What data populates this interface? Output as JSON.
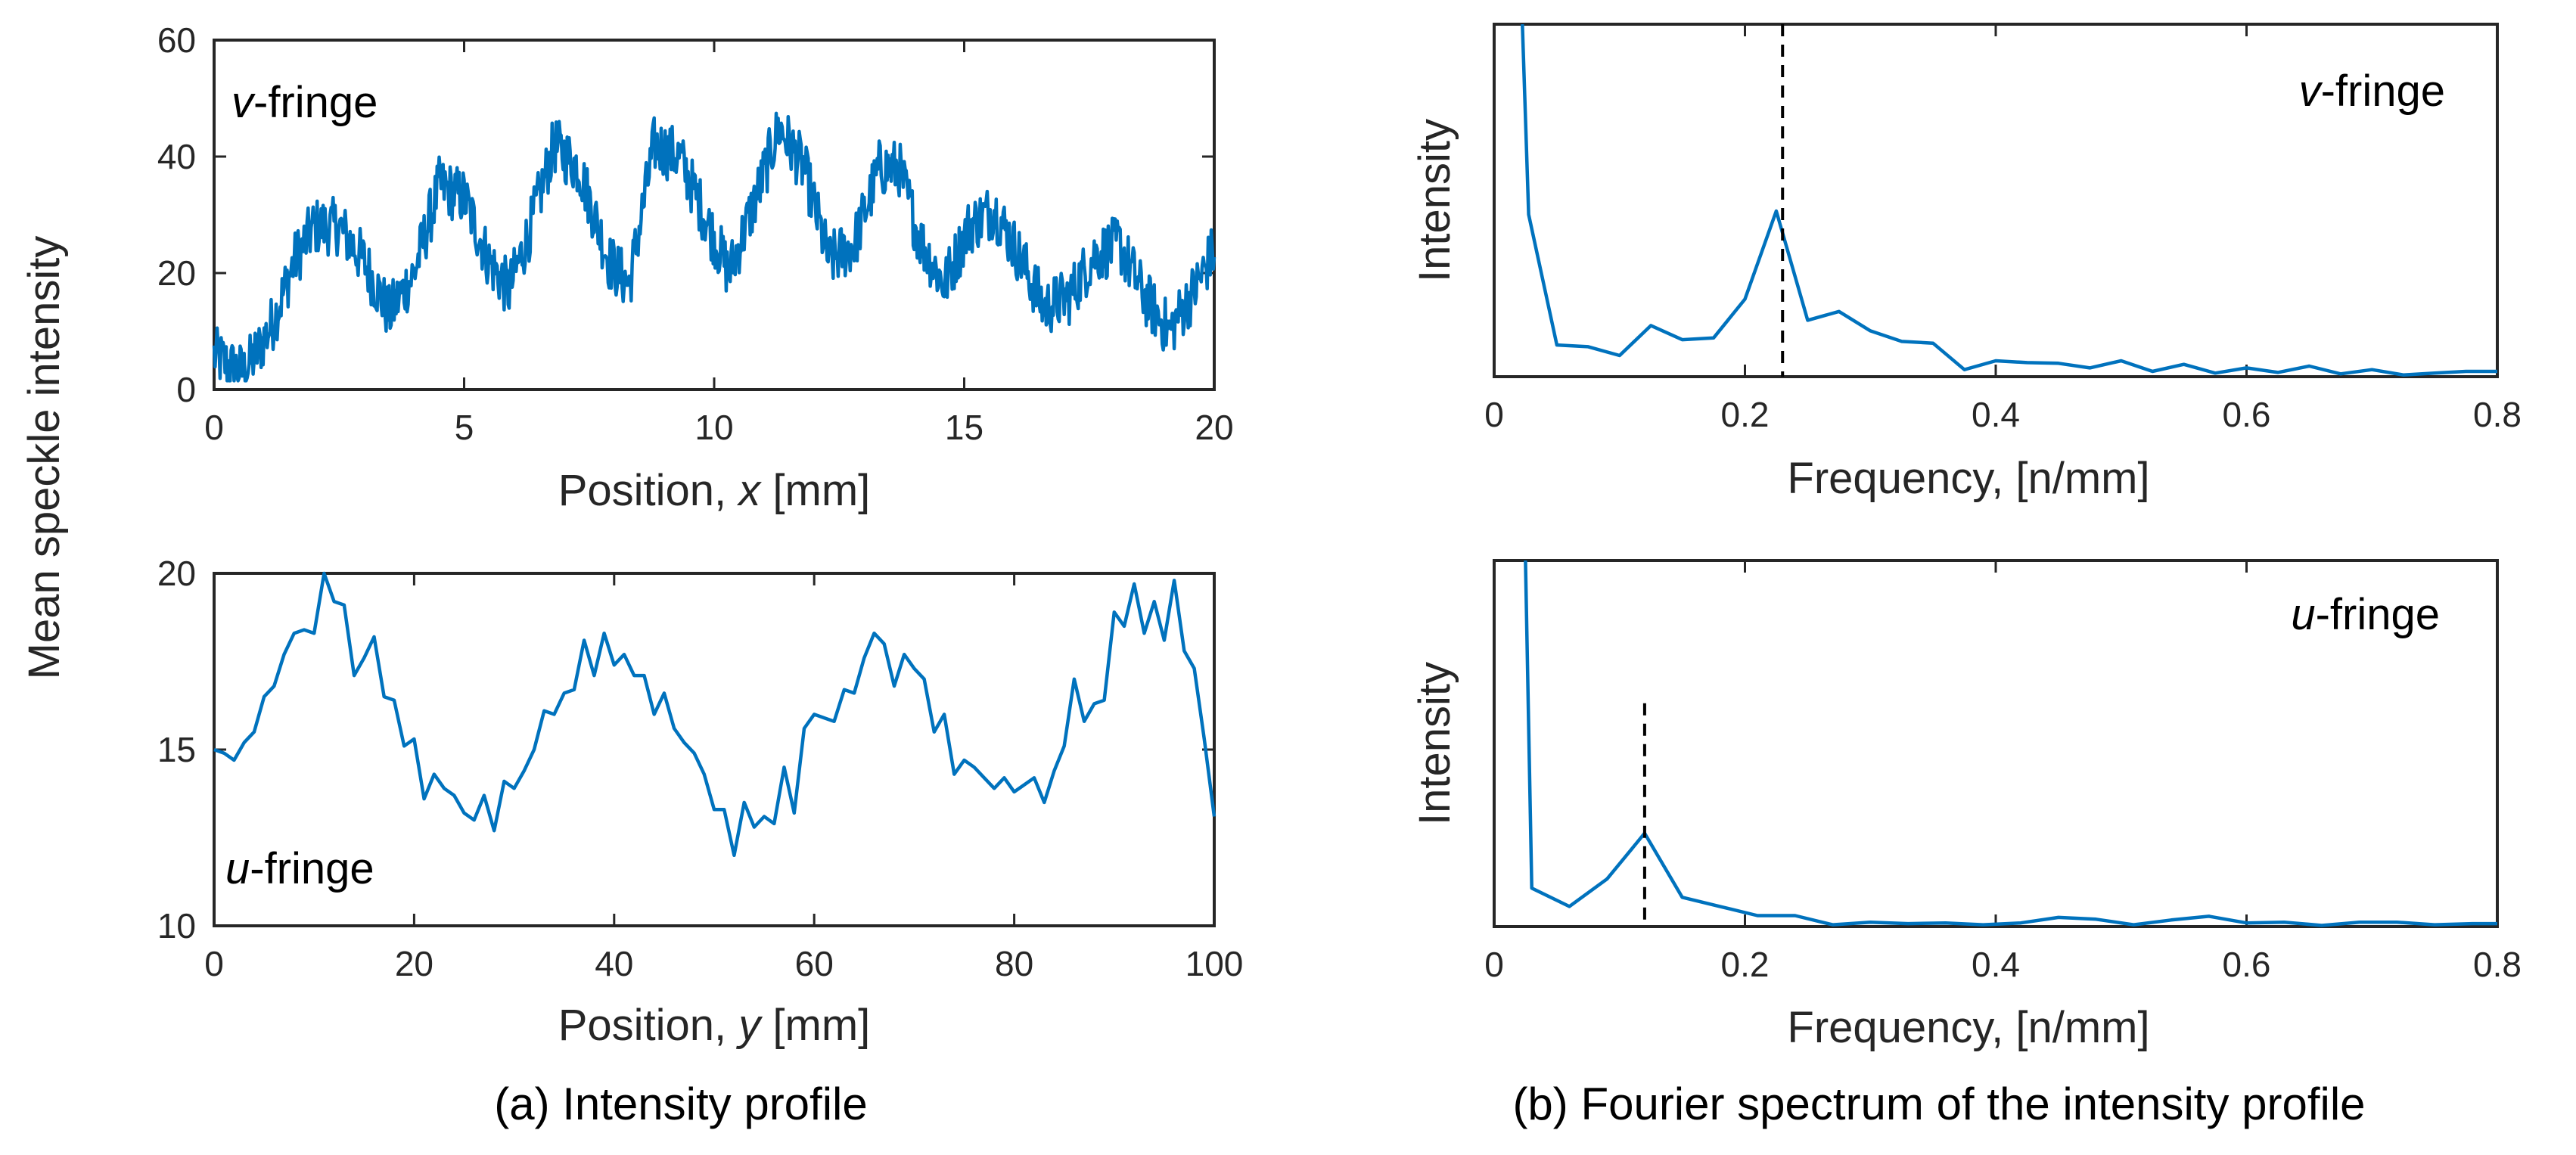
{
  "common_ylabel": "Mean speckle intensity",
  "captions": {
    "a": "(a) Intensity profile",
    "b": "(b) Fourier spectrum of the intensity profile"
  },
  "colors": {
    "series": "#0072BD",
    "axis": "#262626",
    "peak_marker": "#000000"
  },
  "chart_data": [
    {
      "id": "v_profile",
      "type": "line",
      "inset_label": {
        "italic": "v",
        "rest": "-fringe"
      },
      "xlabel": {
        "pre": "Position, ",
        "var": "x",
        "post": " [mm]"
      },
      "xlim": [
        0,
        20
      ],
      "ylim": [
        0,
        60
      ],
      "xticks": [
        0,
        5,
        10,
        15,
        20
      ],
      "yticks": [
        0,
        20,
        40,
        60
      ],
      "envelope": {
        "x": [
          0,
          0.3,
          0.6,
          0.9,
          1.2,
          1.6,
          2.0,
          2.5,
          3.0,
          3.5,
          4.0,
          4.5,
          5.0,
          5.5,
          5.9,
          6.3,
          6.8,
          7.3,
          7.9,
          8.3,
          8.8,
          9.3,
          9.8,
          10.3,
          10.8,
          11.3,
          11.8,
          12.3,
          12.8,
          13.3,
          13.7,
          14.1,
          14.6,
          15.1,
          15.6,
          16.1,
          16.6,
          17.1,
          17.6,
          18.1,
          18.6,
          19.1,
          19.6,
          20.0
        ],
        "y": [
          6,
          4,
          3,
          7,
          12,
          22,
          28,
          28,
          22,
          13,
          20,
          35,
          33,
          22,
          17,
          27,
          42,
          38,
          22,
          18,
          42,
          40,
          30,
          20,
          32,
          45,
          38,
          22,
          25,
          38,
          38,
          26,
          18,
          28,
          31,
          23,
          14,
          16,
          23,
          25,
          16,
          10,
          17,
          24
        ],
        "noise_amplitude": 5,
        "points_per_mm": 50
      }
    },
    {
      "id": "u_profile",
      "type": "line",
      "inset_label": {
        "italic": "u",
        "rest": "-fringe"
      },
      "xlabel": {
        "pre": "Position, ",
        "var": "y",
        "post": " [mm]"
      },
      "xlim": [
        0,
        100
      ],
      "ylim": [
        10,
        20
      ],
      "xticks": [
        0,
        20,
        40,
        60,
        80,
        100
      ],
      "yticks": [
        10,
        15,
        20
      ],
      "x": [
        0,
        1,
        2,
        3,
        4,
        5,
        6,
        7,
        8,
        9,
        10,
        11,
        12,
        13,
        14,
        15,
        16,
        17,
        18,
        19,
        20,
        21,
        22,
        23,
        24,
        25,
        26,
        27,
        28,
        29,
        30,
        31,
        32,
        33,
        34,
        35,
        36,
        37,
        38,
        39,
        40,
        41,
        42,
        43,
        44,
        45,
        46,
        47,
        48,
        49,
        50,
        51,
        52,
        53,
        54,
        55,
        56,
        57,
        58,
        59,
        60,
        61,
        62,
        63,
        64,
        65,
        66,
        67,
        68,
        69,
        70,
        71,
        72,
        73,
        74,
        75,
        76,
        77,
        78,
        79,
        80,
        81,
        82,
        83,
        84,
        85,
        86,
        87,
        88,
        89,
        90,
        91,
        92,
        93,
        94,
        95,
        96,
        97,
        98,
        99,
        100
      ],
      "y": [
        15.0,
        14.9,
        14.7,
        15.2,
        15.5,
        16.5,
        16.8,
        17.7,
        18.3,
        18.4,
        18.3,
        20.0,
        19.2,
        19.1,
        17.1,
        17.6,
        18.2,
        16.5,
        16.4,
        15.1,
        15.3,
        13.6,
        14.3,
        13.9,
        13.7,
        13.2,
        13.0,
        13.7,
        12.7,
        14.1,
        13.9,
        14.4,
        15.0,
        16.1,
        16.0,
        16.6,
        16.7,
        18.1,
        17.1,
        18.3,
        17.4,
        17.7,
        17.1,
        17.1,
        16.0,
        16.6,
        15.6,
        15.2,
        14.9,
        14.3,
        13.3,
        13.3,
        12.0,
        13.5,
        12.8,
        13.1,
        12.9,
        14.5,
        13.2,
        15.6,
        16.0,
        15.9,
        15.8,
        16.7,
        16.6,
        17.6,
        18.3,
        18.0,
        16.8,
        17.7,
        17.3,
        17.0,
        15.5,
        16.0,
        14.3,
        14.7,
        14.5,
        14.2,
        13.9,
        14.2,
        13.8,
        14.0,
        14.2,
        13.5,
        14.4,
        15.1,
        17.0,
        15.8,
        16.3,
        16.4,
        18.9,
        18.5,
        19.7,
        18.3,
        19.2,
        18.1,
        19.8,
        17.8,
        17.3,
        15.3,
        13.1
      ]
    },
    {
      "id": "v_spectrum",
      "type": "line",
      "inset_label": {
        "italic": "v",
        "rest": "-fringe"
      },
      "xlabel": "Frequency,  [n/mm]",
      "ylabel": "Intensity",
      "xlim": [
        0,
        0.8
      ],
      "xticks": [
        0,
        0.2,
        0.4,
        0.6,
        0.8
      ],
      "xtick_labels": [
        "0",
        "0.2",
        "0.4",
        "0.6",
        "0.8"
      ],
      "ylim": [
        0,
        1
      ],
      "y_units": "normalized",
      "peak_marker_x": 0.23,
      "x": [
        0.0225,
        0.0275,
        0.05,
        0.075,
        0.1,
        0.125,
        0.15,
        0.175,
        0.2,
        0.225,
        0.25,
        0.275,
        0.3,
        0.325,
        0.35,
        0.375,
        0.4,
        0.425,
        0.45,
        0.475,
        0.5,
        0.525,
        0.55,
        0.575,
        0.6,
        0.625,
        0.65,
        0.675,
        0.7,
        0.725,
        0.75,
        0.775,
        0.8
      ],
      "y": [
        1.0,
        0.46,
        0.09,
        0.085,
        0.06,
        0.145,
        0.105,
        0.11,
        0.22,
        0.47,
        0.16,
        0.185,
        0.13,
        0.1,
        0.095,
        0.02,
        0.045,
        0.04,
        0.038,
        0.025,
        0.045,
        0.015,
        0.035,
        0.01,
        0.025,
        0.012,
        0.03,
        0.008,
        0.02,
        0.005,
        0.01,
        0.015,
        0.015
      ]
    },
    {
      "id": "u_spectrum",
      "type": "line",
      "inset_label": {
        "italic": "u",
        "rest": "-fringe"
      },
      "xlabel": "Frequency,  [n/mm]",
      "ylabel": "Intensity",
      "xlim": [
        0,
        0.8
      ],
      "xticks": [
        0,
        0.2,
        0.4,
        0.6,
        0.8
      ],
      "xtick_labels": [
        "0",
        "0.2",
        "0.4",
        "0.6",
        "0.8"
      ],
      "ylim": [
        0,
        1
      ],
      "y_units": "normalized",
      "peak_marker_x": 0.12,
      "peak_marker_top": 0.61,
      "x": [
        0.025,
        0.03,
        0.06,
        0.09,
        0.12,
        0.15,
        0.18,
        0.21,
        0.24,
        0.27,
        0.3,
        0.33,
        0.36,
        0.39,
        0.42,
        0.45,
        0.48,
        0.51,
        0.54,
        0.57,
        0.6,
        0.63,
        0.66,
        0.69,
        0.72,
        0.75,
        0.78,
        0.8
      ],
      "y": [
        1.0,
        0.105,
        0.055,
        0.13,
        0.255,
        0.08,
        0.055,
        0.03,
        0.03,
        0.005,
        0.012,
        0.008,
        0.01,
        0.005,
        0.01,
        0.025,
        0.02,
        0.005,
        0.018,
        0.028,
        0.01,
        0.012,
        0.003,
        0.012,
        0.012,
        0.005,
        0.008,
        0.008
      ]
    }
  ]
}
